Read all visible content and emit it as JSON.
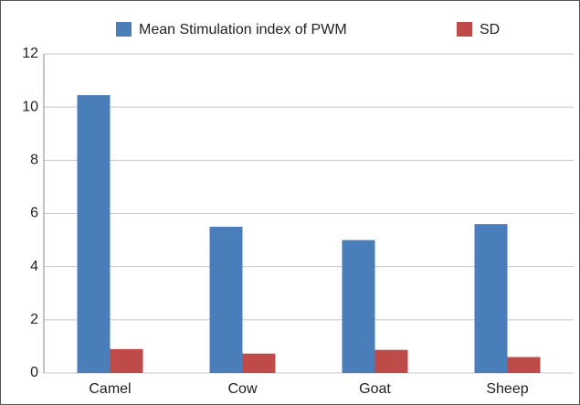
{
  "chart_data": {
    "type": "bar",
    "categories": [
      "Camel",
      "Cow",
      "Goat",
      "Sheep"
    ],
    "series": [
      {
        "name": "Mean Stimulation index of PWM",
        "color": "#4a7ebb",
        "values": [
          10.45,
          5.5,
          5.0,
          5.6
        ]
      },
      {
        "name": "SD",
        "color": "#be4b48",
        "values": [
          0.9,
          0.73,
          0.87,
          0.6
        ]
      }
    ],
    "ylim": [
      0,
      12
    ],
    "yticks": [
      0,
      2,
      4,
      6,
      8,
      10,
      12
    ],
    "grid": true,
    "legend": "top"
  }
}
